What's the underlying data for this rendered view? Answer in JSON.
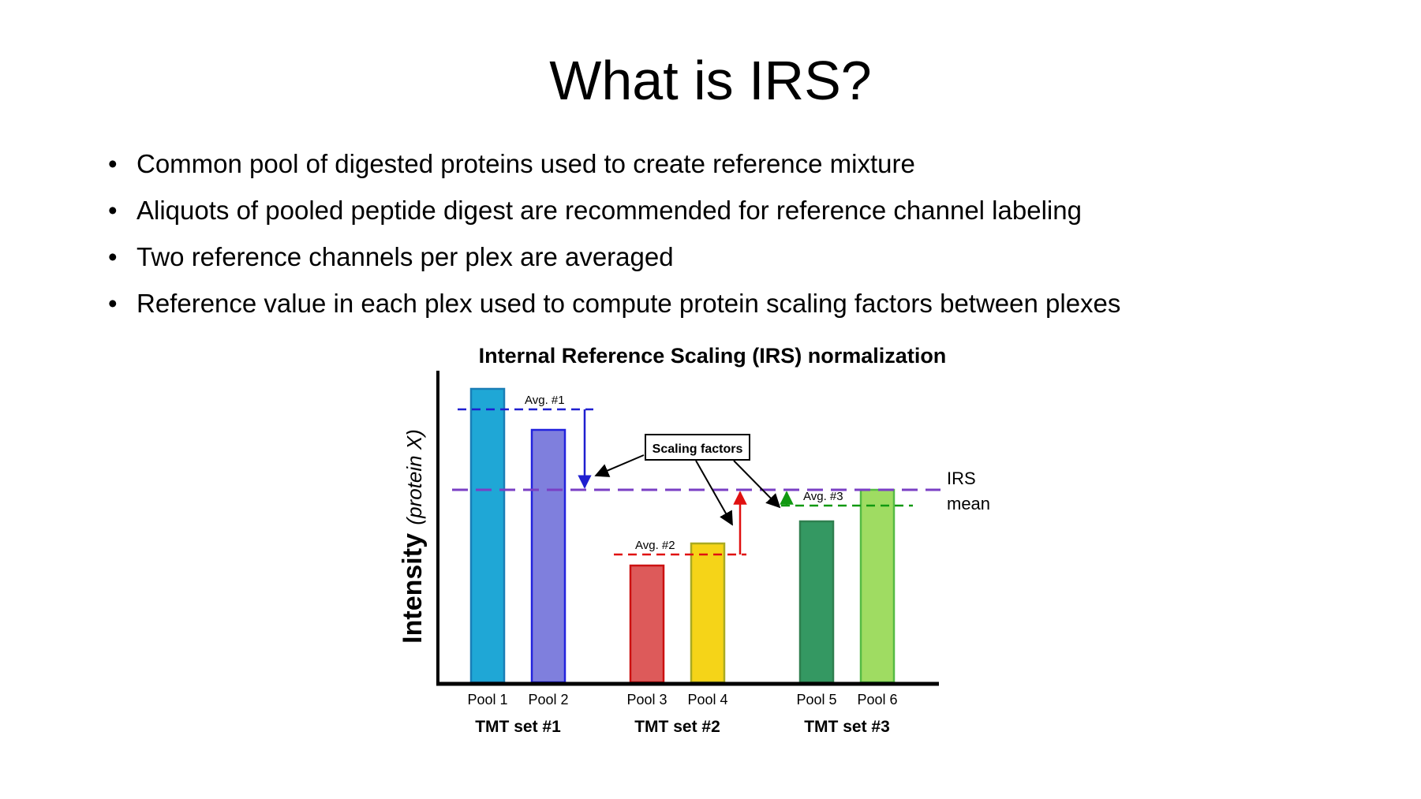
{
  "slide": {
    "title": "What is IRS?",
    "bullets": [
      "Common pool of digested proteins used to create reference mixture",
      "Aliquots of pooled peptide digest are recommended for reference channel labeling",
      "Two reference channels per plex are averaged",
      "Reference value in each plex used to compute protein scaling factors between plexes"
    ]
  },
  "chart_data": {
    "type": "bar",
    "title": "Internal Reference Scaling (IRS) normalization",
    "ylabel": "Intensity",
    "ylabel_suffix": "(protein X)",
    "categories": [
      "Pool 1",
      "Pool 2",
      "Pool 3",
      "Pool 4",
      "Pool 5",
      "Pool 6"
    ],
    "values": [
      9.3,
      8.0,
      3.7,
      4.4,
      5.1,
      6.1
    ],
    "bar_colors": [
      "#1fa7d6",
      "#7f7fdd",
      "#dd5a5a",
      "#f5d418",
      "#349862",
      "#9fdc62"
    ],
    "bar_edges": [
      "#1a7eb6",
      "#2222dd",
      "#cc1111",
      "#aaaa22",
      "#2f7f4f",
      "#55bb44"
    ],
    "ylim": [
      0,
      10
    ],
    "groups": [
      {
        "label": "TMT set #1",
        "bars": [
          0,
          1
        ],
        "avg_label": "Avg. #1",
        "avg": 8.65,
        "color": "#1f1fd0"
      },
      {
        "label": "TMT set #2",
        "bars": [
          2,
          3
        ],
        "avg_label": "Avg. #2",
        "avg": 4.05,
        "color": "#e01010"
      },
      {
        "label": "TMT set #3",
        "bars": [
          4,
          5
        ],
        "avg_label": "Avg. #3",
        "avg": 5.6,
        "color": "#119911"
      }
    ],
    "irs_mean": {
      "value": 6.1,
      "label_line1": "IRS",
      "label_line2": "mean",
      "color": "#7a3fc4"
    },
    "annotation": "Scaling factors",
    "legend": "none",
    "grid": false
  }
}
